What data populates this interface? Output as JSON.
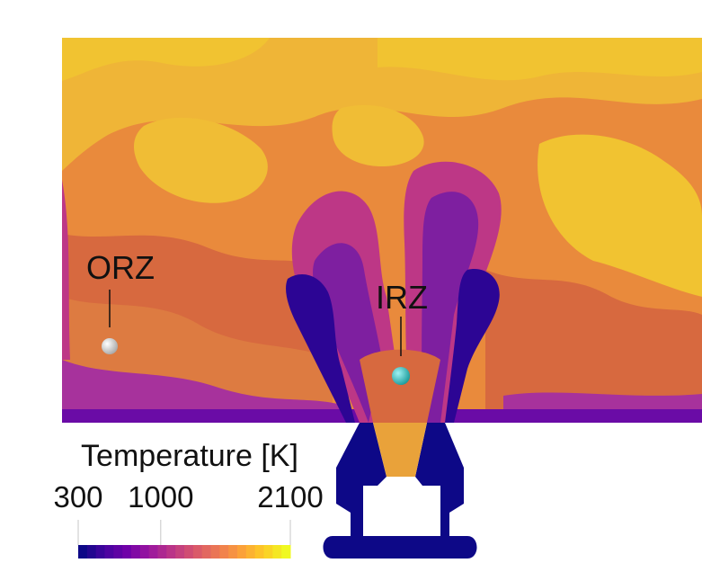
{
  "figure": {
    "annotations": {
      "orz_label": "ORZ",
      "irz_label": "IRZ"
    },
    "colorbar": {
      "title": "Temperature [K]",
      "ticks": [
        "300",
        "1000",
        "2100"
      ],
      "min": 300,
      "max": 2100,
      "tick_values": [
        300,
        1000,
        2100
      ],
      "colormap": "plasma",
      "stops": [
        "#0d0887",
        "#46039f",
        "#7201a8",
        "#9c179e",
        "#bd3786",
        "#d8576b",
        "#ed7953",
        "#fb9f3a",
        "#fdca26",
        "#f0f921"
      ]
    },
    "colors": {
      "cold": "#0d0887",
      "field_base": "#e98a3c",
      "field_hot": "#f1c331",
      "field_mid": "#d7693f",
      "field_cool": "#a7329c",
      "marker_orz": "#d8d8d8",
      "marker_irz": "#3ec9c9"
    }
  }
}
